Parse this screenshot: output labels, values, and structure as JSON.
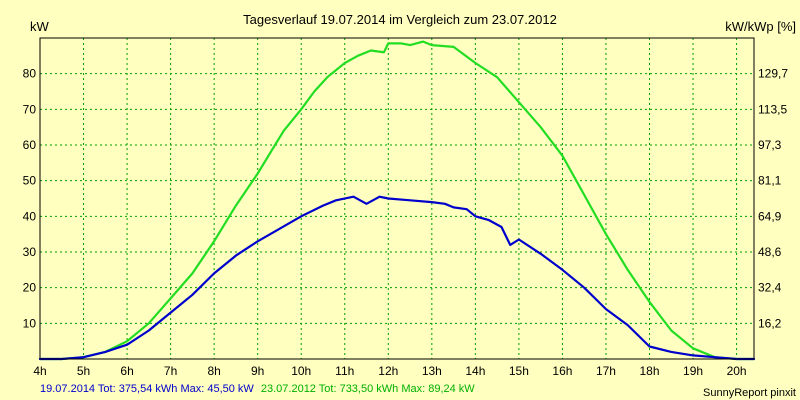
{
  "colors": {
    "background": "#FFFFC0",
    "grid": "#00A000",
    "series_2014": "#0000CC",
    "series_2012": "#22DD22",
    "frame": "#000000"
  },
  "footer": {
    "series_2014_summary": "19.07.2014 Tot: 375,54 kWh Max: 45,50 kW",
    "series_2012_summary": "23.07.2012 Tot: 733,50 kWh Max: 89,24 kW",
    "credit": "SunnyReport pinxit"
  },
  "chart_data": {
    "type": "line",
    "title": "Tagesverlauf 19.07.2014 im Vergleich zum 23.07.2012",
    "ylabel_left": "kW",
    "ylabel_right": "kW/kWp [%]",
    "xlim": [
      4,
      20.4
    ],
    "ylim": [
      0,
      90
    ],
    "x_ticks": [
      4,
      5,
      6,
      7,
      8,
      9,
      10,
      11,
      12,
      13,
      14,
      15,
      16,
      17,
      18,
      19,
      20
    ],
    "x_tick_labels": [
      "4h",
      "5h",
      "6h",
      "7h",
      "8h",
      "9h",
      "10h",
      "11h",
      "12h",
      "13h",
      "14h",
      "15h",
      "16h",
      "17h",
      "18h",
      "19h",
      "20h"
    ],
    "y_ticks_left": [
      10,
      20,
      30,
      40,
      50,
      60,
      70,
      80
    ],
    "y_ticks_right": [
      {
        "value": 10,
        "label": "16,2"
      },
      {
        "value": 20,
        "label": "32,4"
      },
      {
        "value": 30,
        "label": "48,6"
      },
      {
        "value": 40,
        "label": "64,9"
      },
      {
        "value": 50,
        "label": "81,1"
      },
      {
        "value": 60,
        "label": "97,3"
      },
      {
        "value": 70,
        "label": "113,5"
      },
      {
        "value": 80,
        "label": "129,7"
      }
    ],
    "grid": true,
    "series": [
      {
        "name": "23.07.2012",
        "color": "#22DD22",
        "points": [
          [
            4,
            0
          ],
          [
            4.5,
            0
          ],
          [
            5,
            0.5
          ],
          [
            5.5,
            2
          ],
          [
            6,
            5
          ],
          [
            6.5,
            10
          ],
          [
            7,
            17
          ],
          [
            7.5,
            24
          ],
          [
            8,
            33
          ],
          [
            8.5,
            43
          ],
          [
            9,
            52
          ],
          [
            9.3,
            58
          ],
          [
            9.6,
            64
          ],
          [
            10,
            70
          ],
          [
            10.3,
            75
          ],
          [
            10.6,
            79
          ],
          [
            11,
            83
          ],
          [
            11.3,
            85
          ],
          [
            11.6,
            86.5
          ],
          [
            11.9,
            86
          ],
          [
            12,
            88.5
          ],
          [
            12.3,
            88.5
          ],
          [
            12.5,
            88
          ],
          [
            12.8,
            89
          ],
          [
            13,
            88
          ],
          [
            13.5,
            87.5
          ],
          [
            14,
            83
          ],
          [
            14.5,
            79
          ],
          [
            15,
            72
          ],
          [
            15.5,
            65
          ],
          [
            16,
            57
          ],
          [
            16.5,
            46
          ],
          [
            17,
            35
          ],
          [
            17.5,
            25
          ],
          [
            18,
            16
          ],
          [
            18.5,
            8
          ],
          [
            19,
            3
          ],
          [
            19.5,
            0.5
          ],
          [
            20,
            0
          ],
          [
            20.4,
            0
          ]
        ]
      },
      {
        "name": "19.07.2014",
        "color": "#0000CC",
        "points": [
          [
            4,
            0
          ],
          [
            4.5,
            0
          ],
          [
            5,
            0.5
          ],
          [
            5.5,
            2
          ],
          [
            6,
            4
          ],
          [
            6.5,
            8
          ],
          [
            7,
            13
          ],
          [
            7.5,
            18
          ],
          [
            8,
            24
          ],
          [
            8.5,
            29
          ],
          [
            9,
            33
          ],
          [
            9.5,
            36.5
          ],
          [
            10,
            40
          ],
          [
            10.5,
            43
          ],
          [
            10.8,
            44.5
          ],
          [
            11.2,
            45.5
          ],
          [
            11.5,
            43.5
          ],
          [
            11.8,
            45.5
          ],
          [
            12,
            45
          ],
          [
            12.5,
            44.5
          ],
          [
            13,
            44
          ],
          [
            13.3,
            43.5
          ],
          [
            13.5,
            42.5
          ],
          [
            13.8,
            42
          ],
          [
            14,
            40
          ],
          [
            14.3,
            39
          ],
          [
            14.6,
            37
          ],
          [
            14.8,
            32
          ],
          [
            15,
            33.5
          ],
          [
            15.5,
            29.5
          ],
          [
            16,
            25
          ],
          [
            16.5,
            20
          ],
          [
            17,
            14
          ],
          [
            17.5,
            9.5
          ],
          [
            18,
            3.5
          ],
          [
            18.5,
            2
          ],
          [
            19,
            1
          ],
          [
            19.5,
            0.5
          ],
          [
            20,
            0
          ],
          [
            20.4,
            0
          ]
        ]
      }
    ]
  }
}
